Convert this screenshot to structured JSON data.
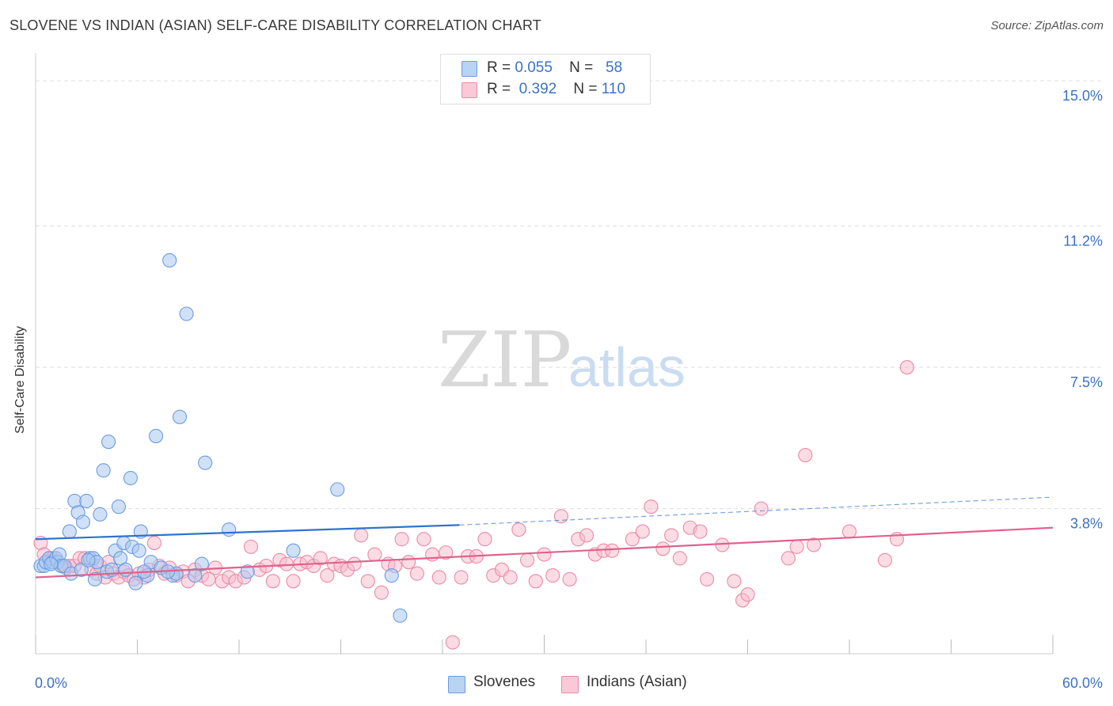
{
  "header": {
    "title": "SLOVENE VS INDIAN (ASIAN) SELF-CARE DISABILITY CORRELATION CHART",
    "source": "Source: ZipAtlas.com"
  },
  "watermark": {
    "zip": "ZIP",
    "atlas": "atlas"
  },
  "legend": {
    "slovenes": {
      "r_label": "R =",
      "r_value": "0.055",
      "n_label": "N =",
      "n_value": "58"
    },
    "indians": {
      "r_label": "R =",
      "r_value": "0.392",
      "n_label": "N =",
      "n_value": "110"
    }
  },
  "bottom_legend": {
    "slovenes": "Slovenes",
    "indians": "Indians (Asian)"
  },
  "colors": {
    "slovene_fill": "#a9c8f0",
    "slovene_stroke": "#6c9be0",
    "slovene_line": "#2f72cf",
    "indian_fill": "#f7b9cc",
    "indian_stroke": "#ea8aa8",
    "indian_line": "#e0628b",
    "axis_text": "#3a72c4",
    "grid": "#dddddd"
  },
  "chart_data": {
    "type": "scatter",
    "title": "SLOVENE VS INDIAN (ASIAN) SELF-CARE DISABILITY CORRELATION CHART",
    "xlabel": "",
    "ylabel": "Self-Care Disability",
    "xlim": [
      0,
      60
    ],
    "ylim": [
      0,
      15.5
    ],
    "x_tick_labels": [
      "0.0%",
      "60.0%"
    ],
    "y_ticks": [
      3.8,
      7.5,
      11.2,
      15.0
    ],
    "y_tick_labels": [
      "3.8%",
      "7.5%",
      "11.2%",
      "15.0%"
    ],
    "grid": true,
    "series": [
      {
        "name": "Slovenes",
        "R": 0.055,
        "N": 58,
        "trend": {
          "x": [
            0,
            25
          ],
          "y": [
            3.0,
            3.37
          ]
        },
        "trend_extension": {
          "x": [
            25,
            60
          ],
          "y": [
            3.37,
            4.1
          ]
        },
        "points": [
          [
            0.3,
            2.3
          ],
          [
            0.5,
            2.3
          ],
          [
            0.6,
            2.4
          ],
          [
            0.8,
            2.5
          ],
          [
            1.0,
            2.4
          ],
          [
            1.2,
            2.5
          ],
          [
            1.3,
            2.4
          ],
          [
            1.4,
            2.6
          ],
          [
            1.5,
            2.3
          ],
          [
            1.7,
            2.3
          ],
          [
            2.0,
            3.2
          ],
          [
            2.1,
            2.1
          ],
          [
            2.3,
            4.0
          ],
          [
            2.5,
            3.7
          ],
          [
            2.8,
            3.45
          ],
          [
            3.0,
            4.0
          ],
          [
            3.2,
            2.5
          ],
          [
            3.4,
            2.5
          ],
          [
            3.5,
            1.95
          ],
          [
            3.6,
            2.4
          ],
          [
            3.8,
            3.65
          ],
          [
            4.0,
            4.8
          ],
          [
            4.2,
            2.15
          ],
          [
            4.3,
            5.55
          ],
          [
            4.5,
            2.2
          ],
          [
            4.7,
            2.7
          ],
          [
            4.9,
            3.85
          ],
          [
            5.0,
            2.5
          ],
          [
            5.2,
            2.9
          ],
          [
            5.3,
            2.2
          ],
          [
            5.6,
            4.6
          ],
          [
            5.7,
            2.8
          ],
          [
            5.9,
            1.85
          ],
          [
            6.1,
            2.7
          ],
          [
            6.2,
            3.2
          ],
          [
            6.6,
            2.05
          ],
          [
            6.8,
            2.4
          ],
          [
            7.1,
            5.7
          ],
          [
            7.4,
            2.25
          ],
          [
            7.9,
            10.3
          ],
          [
            8.1,
            2.05
          ],
          [
            8.3,
            2.1
          ],
          [
            8.5,
            6.2
          ],
          [
            8.9,
            8.9
          ],
          [
            9.4,
            2.05
          ],
          [
            9.8,
            2.35
          ],
          [
            10.0,
            5.0
          ],
          [
            11.4,
            3.25
          ],
          [
            12.5,
            2.15
          ],
          [
            15.2,
            2.7
          ],
          [
            17.8,
            4.3
          ],
          [
            21.0,
            2.05
          ],
          [
            21.5,
            1.0
          ],
          [
            0.9,
            2.35
          ],
          [
            2.7,
            2.2
          ],
          [
            6.4,
            2.15
          ],
          [
            3.1,
            2.45
          ],
          [
            7.8,
            2.15
          ]
        ]
      },
      {
        "name": "Indians (Asian)",
        "R": 0.392,
        "N": 110,
        "trend": {
          "x": [
            0,
            60
          ],
          "y": [
            2.0,
            3.3
          ]
        },
        "points": [
          [
            0.3,
            2.9
          ],
          [
            0.5,
            2.6
          ],
          [
            0.8,
            2.5
          ],
          [
            1.0,
            2.5
          ],
          [
            1.3,
            2.4
          ],
          [
            1.6,
            2.3
          ],
          [
            1.8,
            2.25
          ],
          [
            2.0,
            2.3
          ],
          [
            2.3,
            2.3
          ],
          [
            2.6,
            2.5
          ],
          [
            2.9,
            2.5
          ],
          [
            3.3,
            2.2
          ],
          [
            3.6,
            2.1
          ],
          [
            3.8,
            2.3
          ],
          [
            4.1,
            2.0
          ],
          [
            4.3,
            2.4
          ],
          [
            4.6,
            2.1
          ],
          [
            4.9,
            2.0
          ],
          [
            5.2,
            2.15
          ],
          [
            5.5,
            2.05
          ],
          [
            5.8,
            1.95
          ],
          [
            6.1,
            2.1
          ],
          [
            6.4,
            2.0
          ],
          [
            6.7,
            2.2
          ],
          [
            7.0,
            2.9
          ],
          [
            7.3,
            2.3
          ],
          [
            7.6,
            2.1
          ],
          [
            7.9,
            2.25
          ],
          [
            8.3,
            2.05
          ],
          [
            8.7,
            2.15
          ],
          [
            9.0,
            1.9
          ],
          [
            9.4,
            2.2
          ],
          [
            9.8,
            2.05
          ],
          [
            10.2,
            1.95
          ],
          [
            10.6,
            2.25
          ],
          [
            11.0,
            1.9
          ],
          [
            11.4,
            2.0
          ],
          [
            11.8,
            1.9
          ],
          [
            12.3,
            2.0
          ],
          [
            12.7,
            2.8
          ],
          [
            13.2,
            2.2
          ],
          [
            13.6,
            2.3
          ],
          [
            14.0,
            1.9
          ],
          [
            14.4,
            2.45
          ],
          [
            14.8,
            2.35
          ],
          [
            15.2,
            1.9
          ],
          [
            15.6,
            2.35
          ],
          [
            16.0,
            2.4
          ],
          [
            16.4,
            2.3
          ],
          [
            16.8,
            2.5
          ],
          [
            17.2,
            2.05
          ],
          [
            17.6,
            2.35
          ],
          [
            18.0,
            2.3
          ],
          [
            18.4,
            2.2
          ],
          [
            18.8,
            2.35
          ],
          [
            19.2,
            3.1
          ],
          [
            19.6,
            1.9
          ],
          [
            20.0,
            2.6
          ],
          [
            20.4,
            1.6
          ],
          [
            20.8,
            2.35
          ],
          [
            21.2,
            2.3
          ],
          [
            21.6,
            3.0
          ],
          [
            22.0,
            2.4
          ],
          [
            22.5,
            2.1
          ],
          [
            22.9,
            3.0
          ],
          [
            23.4,
            2.6
          ],
          [
            23.8,
            2.0
          ],
          [
            24.2,
            2.65
          ],
          [
            24.6,
            0.3
          ],
          [
            25.1,
            2.0
          ],
          [
            25.5,
            2.55
          ],
          [
            26.0,
            2.55
          ],
          [
            26.5,
            3.0
          ],
          [
            27.0,
            2.05
          ],
          [
            27.5,
            2.2
          ],
          [
            28.0,
            2.0
          ],
          [
            28.5,
            3.25
          ],
          [
            29.0,
            2.45
          ],
          [
            29.5,
            1.9
          ],
          [
            30.0,
            2.6
          ],
          [
            30.5,
            2.05
          ],
          [
            31.0,
            3.6
          ],
          [
            31.5,
            1.95
          ],
          [
            32.0,
            3.0
          ],
          [
            32.5,
            3.1
          ],
          [
            33.0,
            2.6
          ],
          [
            33.5,
            2.7
          ],
          [
            34.0,
            2.7
          ],
          [
            35.2,
            3.0
          ],
          [
            35.8,
            3.2
          ],
          [
            36.3,
            3.85
          ],
          [
            37.0,
            2.75
          ],
          [
            37.5,
            3.1
          ],
          [
            38.0,
            2.5
          ],
          [
            38.6,
            3.3
          ],
          [
            39.2,
            3.2
          ],
          [
            39.6,
            1.95
          ],
          [
            40.5,
            2.85
          ],
          [
            41.2,
            1.9
          ],
          [
            41.7,
            1.4
          ],
          [
            42.0,
            1.55
          ],
          [
            42.8,
            3.8
          ],
          [
            44.4,
            2.5
          ],
          [
            44.9,
            2.8
          ],
          [
            45.4,
            5.2
          ],
          [
            45.9,
            2.85
          ],
          [
            48.0,
            3.2
          ],
          [
            50.1,
            2.45
          ],
          [
            50.8,
            3.0
          ],
          [
            51.4,
            7.5
          ]
        ]
      }
    ]
  }
}
